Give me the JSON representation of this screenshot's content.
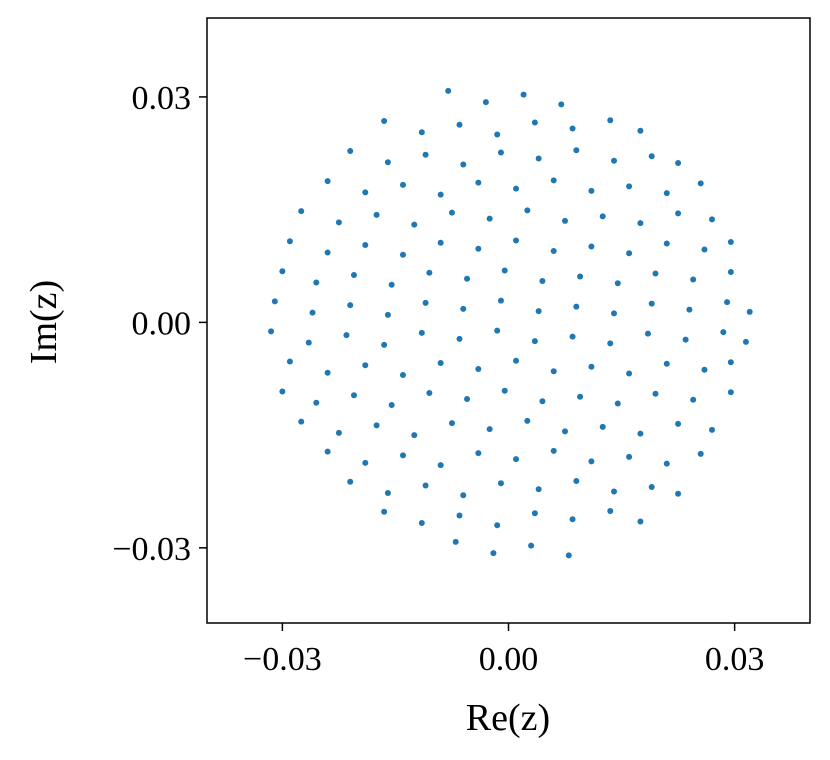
{
  "chart_data": {
    "type": "scatter",
    "color": "#1f77b4",
    "x_label": "Re(z)",
    "y_label": "Im(z)",
    "xlim": [
      -0.04,
      0.04
    ],
    "ylim": [
      -0.04,
      0.0405
    ],
    "xticks": [
      {
        "value": -0.03,
        "label": "−0.03"
      },
      {
        "value": 0,
        "label": "0.00"
      },
      {
        "value": 0.03,
        "label": "0.03"
      }
    ],
    "yticks": [
      {
        "value": -0.03,
        "label": "−0.03"
      },
      {
        "value": 0,
        "label": "0.00"
      },
      {
        "value": 0.03,
        "label": "0.03"
      }
    ],
    "x": [
      -0.008,
      -0.003,
      0.002,
      0.007,
      -0.0165,
      -0.0115,
      -0.0065,
      -0.0015,
      0.0035,
      0.0085,
      0.0135,
      0.0175,
      -0.021,
      -0.016,
      -0.011,
      -0.006,
      -0.001,
      0.004,
      0.009,
      0.014,
      0.019,
      0.0225,
      -0.024,
      -0.019,
      -0.014,
      -0.009,
      -0.004,
      0.001,
      0.006,
      0.011,
      0.016,
      0.021,
      0.0255,
      -0.0275,
      -0.0225,
      -0.0175,
      -0.0125,
      -0.0075,
      -0.0025,
      0.0025,
      0.0075,
      0.0125,
      0.0175,
      0.0225,
      0.027,
      -0.029,
      -0.024,
      -0.019,
      -0.014,
      -0.009,
      -0.004,
      0.001,
      0.006,
      0.011,
      0.016,
      0.021,
      0.026,
      0.0295,
      -0.03,
      -0.0255,
      -0.0205,
      -0.0155,
      -0.0105,
      -0.0055,
      -0.0005,
      0.0045,
      0.0095,
      0.0145,
      0.0195,
      0.0245,
      0.0295,
      -0.031,
      -0.026,
      -0.021,
      -0.016,
      -0.011,
      -0.006,
      -0.001,
      0.004,
      0.009,
      0.014,
      0.019,
      0.024,
      0.029,
      0.032,
      -0.0315,
      -0.0265,
      -0.0215,
      -0.0165,
      -0.0115,
      -0.0065,
      -0.0015,
      0.0035,
      0.0085,
      0.0135,
      0.0185,
      0.0235,
      0.0285,
      0.0315,
      -0.029,
      -0.024,
      -0.019,
      -0.014,
      -0.009,
      -0.004,
      0.001,
      0.006,
      0.011,
      0.016,
      0.021,
      0.026,
      0.0295,
      -0.03,
      -0.0255,
      -0.0205,
      -0.0155,
      -0.0105,
      -0.0055,
      -0.0005,
      0.0045,
      0.0095,
      0.0145,
      0.0195,
      0.0245,
      0.0295,
      -0.0275,
      -0.0225,
      -0.0175,
      -0.0125,
      -0.0075,
      -0.0025,
      0.0025,
      0.0075,
      0.0125,
      0.0175,
      0.0225,
      0.027,
      -0.024,
      -0.019,
      -0.014,
      -0.009,
      -0.004,
      0.001,
      0.006,
      0.011,
      0.016,
      0.021,
      0.0255,
      -0.021,
      -0.016,
      -0.011,
      -0.006,
      -0.001,
      0.004,
      0.009,
      0.014,
      0.019,
      0.0225,
      -0.0165,
      -0.0115,
      -0.0065,
      -0.0015,
      0.0035,
      0.0085,
      0.0135,
      0.0175,
      -0.007,
      -0.002,
      0.003,
      0.008
    ],
    "y": [
      0.0308,
      0.0293,
      0.0303,
      0.029,
      0.0268,
      0.0253,
      0.0263,
      0.025,
      0.0266,
      0.0258,
      0.0269,
      0.0255,
      0.0228,
      0.0213,
      0.0223,
      0.021,
      0.0226,
      0.0218,
      0.0229,
      0.0215,
      0.0221,
      0.0212,
      0.0188,
      0.0173,
      0.0183,
      0.017,
      0.0186,
      0.0178,
      0.0189,
      0.0175,
      0.0181,
      0.0172,
      0.0185,
      0.0148,
      0.0133,
      0.0143,
      0.013,
      0.0146,
      0.0138,
      0.0149,
      0.0135,
      0.0141,
      0.0132,
      0.0145,
      0.0137,
      0.0108,
      0.0093,
      0.0103,
      0.009,
      0.0106,
      0.0098,
      0.0109,
      0.0095,
      0.0101,
      0.0092,
      0.0105,
      0.0097,
      0.0107,
      0.0068,
      0.0053,
      0.0063,
      0.005,
      0.0066,
      0.0058,
      0.0069,
      0.0055,
      0.0061,
      0.0052,
      0.0065,
      0.0057,
      0.0067,
      0.0028,
      0.0013,
      0.0023,
      0.001,
      0.0026,
      0.0018,
      0.0029,
      0.0015,
      0.0021,
      0.0012,
      0.0025,
      0.0017,
      0.0027,
      0.0014,
      -0.0012,
      -0.0027,
      -0.0017,
      -0.003,
      -0.0014,
      -0.0022,
      -0.0011,
      -0.0025,
      -0.0019,
      -0.0028,
      -0.0015,
      -0.0023,
      -0.0013,
      -0.0026,
      -0.0052,
      -0.0067,
      -0.0057,
      -0.007,
      -0.0054,
      -0.0062,
      -0.0051,
      -0.0065,
      -0.0059,
      -0.0068,
      -0.0055,
      -0.0063,
      -0.0053,
      -0.0092,
      -0.0107,
      -0.0097,
      -0.011,
      -0.0094,
      -0.0102,
      -0.0091,
      -0.0105,
      -0.0099,
      -0.0108,
      -0.0095,
      -0.0103,
      -0.0093,
      -0.0132,
      -0.0147,
      -0.0137,
      -0.015,
      -0.0134,
      -0.0142,
      -0.0131,
      -0.0145,
      -0.0139,
      -0.0148,
      -0.0135,
      -0.0143,
      -0.0172,
      -0.0187,
      -0.0177,
      -0.019,
      -0.0174,
      -0.0182,
      -0.0171,
      -0.0185,
      -0.0179,
      -0.0188,
      -0.0175,
      -0.0212,
      -0.0227,
      -0.0217,
      -0.023,
      -0.0214,
      -0.0222,
      -0.0211,
      -0.0225,
      -0.0219,
      -0.0228,
      -0.0252,
      -0.0267,
      -0.0257,
      -0.027,
      -0.0254,
      -0.0262,
      -0.0251,
      -0.0265,
      -0.0292,
      -0.0307,
      -0.0297,
      -0.031
    ]
  }
}
